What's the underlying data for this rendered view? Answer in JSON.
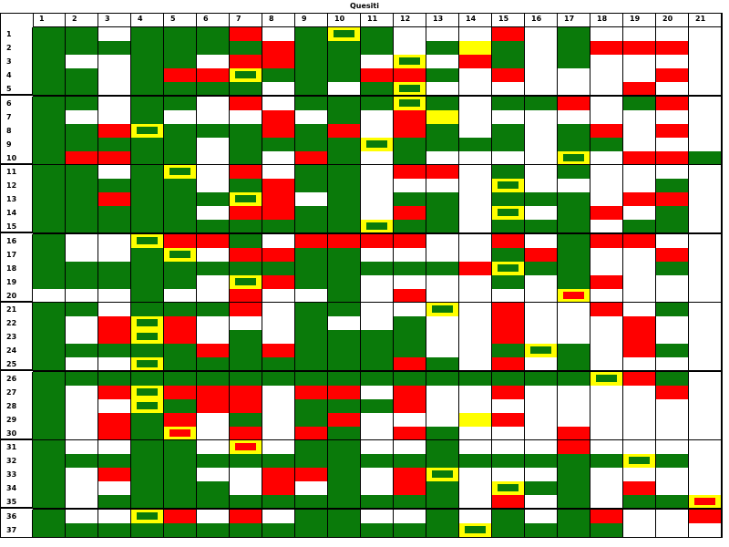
{
  "title": "Quesiti",
  "colors": {
    "G": "#0a7a0a",
    "R": "#ff0000",
    "W": "#ffffff",
    "Y": "#ffff00",
    "gridline": "#000000"
  },
  "columns": [
    "1",
    "2",
    "3",
    "4",
    "5",
    "6",
    "7",
    "8",
    "9",
    "10",
    "11",
    "12",
    "13",
    "14",
    "15",
    "16",
    "17",
    "18",
    "19",
    "20",
    "21"
  ],
  "group_breaks_after_rows": [
    5,
    10,
    15,
    20,
    25,
    30,
    35
  ],
  "rows": [
    {
      "label": "1",
      "cells": [
        "G",
        "G",
        "W",
        "G",
        "G",
        "G",
        "R",
        "W",
        "G",
        "YG",
        "G",
        "W",
        "W",
        "W",
        "R",
        "W",
        "G",
        "W",
        "W",
        "W",
        "W"
      ]
    },
    {
      "label": "2",
      "cells": [
        "G",
        "G",
        "G",
        "G",
        "G",
        "G",
        "G",
        "R",
        "G",
        "G",
        "G",
        "W",
        "G",
        "Y",
        "G",
        "W",
        "G",
        "R",
        "R",
        "R",
        "W"
      ]
    },
    {
      "label": "3",
      "cells": [
        "G",
        "W",
        "W",
        "G",
        "G",
        "W",
        "R",
        "R",
        "G",
        "G",
        "W",
        "YG",
        "W",
        "R",
        "G",
        "W",
        "G",
        "W",
        "W",
        "W",
        "W"
      ]
    },
    {
      "label": "4",
      "cells": [
        "G",
        "G",
        "W",
        "G",
        "R",
        "R",
        "YG",
        "G",
        "G",
        "G",
        "R",
        "R",
        "G",
        "W",
        "R",
        "W",
        "W",
        "W",
        "W",
        "R",
        "W"
      ]
    },
    {
      "label": "5",
      "cells": [
        "G",
        "G",
        "W",
        "G",
        "G",
        "G",
        "G",
        "W",
        "G",
        "W",
        "G",
        "YG",
        "W",
        "W",
        "W",
        "W",
        "W",
        "W",
        "R",
        "W",
        "W"
      ]
    },
    {
      "label": "6",
      "cells": [
        "G",
        "G",
        "W",
        "G",
        "G",
        "W",
        "R",
        "W",
        "G",
        "G",
        "G",
        "YG",
        "G",
        "W",
        "G",
        "G",
        "R",
        "W",
        "G",
        "R",
        "W"
      ]
    },
    {
      "label": "7",
      "cells": [
        "G",
        "W",
        "W",
        "G",
        "W",
        "W",
        "W",
        "R",
        "W",
        "G",
        "W",
        "R",
        "Y",
        "W",
        "W",
        "W",
        "W",
        "W",
        "W",
        "W",
        "W"
      ]
    },
    {
      "label": "8",
      "cells": [
        "G",
        "G",
        "R",
        "YG",
        "G",
        "G",
        "G",
        "R",
        "G",
        "R",
        "W",
        "R",
        "G",
        "W",
        "G",
        "W",
        "G",
        "R",
        "W",
        "R",
        "W"
      ]
    },
    {
      "label": "9",
      "cells": [
        "G",
        "G",
        "G",
        "G",
        "G",
        "W",
        "G",
        "G",
        "G",
        "G",
        "YG",
        "G",
        "G",
        "G",
        "G",
        "W",
        "G",
        "G",
        "W",
        "W",
        "W"
      ]
    },
    {
      "label": "10",
      "cells": [
        "G",
        "R",
        "R",
        "G",
        "G",
        "W",
        "G",
        "W",
        "R",
        "G",
        "W",
        "G",
        "W",
        "W",
        "W",
        "W",
        "YG",
        "W",
        "R",
        "R",
        "G"
      ]
    },
    {
      "label": "11",
      "cells": [
        "G",
        "G",
        "W",
        "G",
        "YG",
        "W",
        "R",
        "W",
        "G",
        "G",
        "W",
        "R",
        "R",
        "W",
        "G",
        "W",
        "G",
        "W",
        "W",
        "W",
        "W"
      ]
    },
    {
      "label": "12",
      "cells": [
        "G",
        "G",
        "G",
        "G",
        "G",
        "W",
        "G",
        "R",
        "G",
        "G",
        "W",
        "W",
        "W",
        "W",
        "YG",
        "W",
        "W",
        "W",
        "W",
        "G",
        "W"
      ]
    },
    {
      "label": "13",
      "cells": [
        "G",
        "G",
        "R",
        "G",
        "G",
        "G",
        "YG",
        "R",
        "W",
        "G",
        "W",
        "G",
        "G",
        "W",
        "G",
        "G",
        "G",
        "W",
        "R",
        "R",
        "W"
      ]
    },
    {
      "label": "14",
      "cells": [
        "G",
        "G",
        "G",
        "G",
        "G",
        "W",
        "R",
        "R",
        "G",
        "G",
        "W",
        "R",
        "G",
        "W",
        "YG",
        "W",
        "G",
        "R",
        "W",
        "G",
        "W"
      ]
    },
    {
      "label": "15",
      "cells": [
        "G",
        "G",
        "G",
        "G",
        "G",
        "G",
        "G",
        "G",
        "G",
        "G",
        "YG",
        "G",
        "G",
        "W",
        "G",
        "G",
        "G",
        "W",
        "G",
        "G",
        "W"
      ]
    },
    {
      "label": "16",
      "cells": [
        "G",
        "W",
        "W",
        "YG",
        "R",
        "R",
        "G",
        "W",
        "R",
        "R",
        "R",
        "R",
        "W",
        "W",
        "R",
        "W",
        "G",
        "R",
        "R",
        "W",
        "W"
      ]
    },
    {
      "label": "17",
      "cells": [
        "G",
        "W",
        "W",
        "G",
        "YG",
        "W",
        "R",
        "R",
        "G",
        "G",
        "W",
        "W",
        "W",
        "W",
        "G",
        "R",
        "G",
        "W",
        "W",
        "R",
        "W"
      ]
    },
    {
      "label": "18",
      "cells": [
        "G",
        "G",
        "G",
        "G",
        "G",
        "G",
        "G",
        "G",
        "G",
        "G",
        "G",
        "G",
        "G",
        "R",
        "YG",
        "G",
        "G",
        "W",
        "W",
        "G",
        "W"
      ]
    },
    {
      "label": "19",
      "cells": [
        "G",
        "G",
        "G",
        "G",
        "G",
        "W",
        "YG",
        "R",
        "G",
        "G",
        "W",
        "W",
        "W",
        "W",
        "G",
        "W",
        "G",
        "R",
        "W",
        "W",
        "W"
      ]
    },
    {
      "label": "20",
      "cells": [
        "W",
        "W",
        "W",
        "G",
        "W",
        "W",
        "R",
        "W",
        "W",
        "G",
        "W",
        "R",
        "W",
        "W",
        "W",
        "W",
        "YR",
        "W",
        "W",
        "W",
        "W"
      ]
    },
    {
      "label": "21",
      "cells": [
        "G",
        "G",
        "W",
        "G",
        "G",
        "G",
        "R",
        "W",
        "G",
        "G",
        "W",
        "W",
        "YG",
        "W",
        "R",
        "W",
        "W",
        "R",
        "W",
        "G",
        "W"
      ]
    },
    {
      "label": "22",
      "cells": [
        "G",
        "W",
        "R",
        "YG",
        "R",
        "W",
        "W",
        "W",
        "G",
        "W",
        "W",
        "G",
        "W",
        "W",
        "R",
        "W",
        "W",
        "W",
        "R",
        "W",
        "W"
      ]
    },
    {
      "label": "23",
      "cells": [
        "G",
        "W",
        "R",
        "YG",
        "R",
        "W",
        "G",
        "W",
        "G",
        "G",
        "G",
        "G",
        "W",
        "W",
        "R",
        "W",
        "W",
        "W",
        "R",
        "W",
        "W"
      ]
    },
    {
      "label": "24",
      "cells": [
        "G",
        "G",
        "G",
        "G",
        "G",
        "R",
        "G",
        "R",
        "G",
        "G",
        "G",
        "G",
        "W",
        "W",
        "G",
        "YG",
        "G",
        "W",
        "R",
        "G",
        "W"
      ]
    },
    {
      "label": "25",
      "cells": [
        "G",
        "W",
        "W",
        "YG",
        "G",
        "G",
        "G",
        "G",
        "G",
        "G",
        "G",
        "R",
        "G",
        "W",
        "R",
        "W",
        "G",
        "W",
        "W",
        "W",
        "W"
      ]
    },
    {
      "label": "26",
      "cells": [
        "G",
        "G",
        "G",
        "G",
        "G",
        "G",
        "G",
        "G",
        "G",
        "G",
        "G",
        "G",
        "G",
        "G",
        "G",
        "G",
        "G",
        "YG",
        "R",
        "G",
        "W"
      ]
    },
    {
      "label": "27",
      "cells": [
        "G",
        "W",
        "R",
        "YG",
        "R",
        "R",
        "R",
        "W",
        "R",
        "R",
        "W",
        "R",
        "W",
        "W",
        "R",
        "W",
        "W",
        "W",
        "W",
        "R",
        "W"
      ]
    },
    {
      "label": "28",
      "cells": [
        "G",
        "W",
        "W",
        "YG",
        "G",
        "R",
        "R",
        "W",
        "G",
        "G",
        "G",
        "R",
        "W",
        "W",
        "W",
        "W",
        "W",
        "W",
        "W",
        "W",
        "W"
      ]
    },
    {
      "label": "29",
      "cells": [
        "G",
        "W",
        "R",
        "G",
        "R",
        "W",
        "G",
        "W",
        "G",
        "R",
        "W",
        "W",
        "W",
        "Y",
        "R",
        "W",
        "W",
        "W",
        "W",
        "W",
        "W"
      ]
    },
    {
      "label": "30",
      "cells": [
        "G",
        "W",
        "R",
        "G",
        "YR",
        "W",
        "R",
        "W",
        "R",
        "G",
        "W",
        "R",
        "G",
        "W",
        "W",
        "W",
        "R",
        "W",
        "W",
        "W",
        "W"
      ]
    },
    {
      "label": "31",
      "cells": [
        "G",
        "W",
        "W",
        "G",
        "G",
        "W",
        "YR",
        "W",
        "G",
        "G",
        "W",
        "W",
        "G",
        "W",
        "W",
        "W",
        "R",
        "W",
        "W",
        "W",
        "W"
      ]
    },
    {
      "label": "32",
      "cells": [
        "G",
        "G",
        "G",
        "G",
        "G",
        "G",
        "G",
        "G",
        "G",
        "G",
        "G",
        "G",
        "G",
        "G",
        "G",
        "G",
        "G",
        "G",
        "YG",
        "G",
        "W"
      ]
    },
    {
      "label": "33",
      "cells": [
        "G",
        "W",
        "R",
        "G",
        "G",
        "W",
        "W",
        "R",
        "R",
        "G",
        "W",
        "R",
        "YG",
        "W",
        "W",
        "W",
        "G",
        "W",
        "W",
        "W",
        "W"
      ]
    },
    {
      "label": "34",
      "cells": [
        "G",
        "W",
        "W",
        "G",
        "G",
        "G",
        "W",
        "R",
        "W",
        "G",
        "W",
        "R",
        "G",
        "W",
        "YG",
        "G",
        "G",
        "W",
        "R",
        "W",
        "W"
      ]
    },
    {
      "label": "35",
      "cells": [
        "G",
        "W",
        "G",
        "G",
        "G",
        "G",
        "G",
        "G",
        "G",
        "G",
        "G",
        "G",
        "G",
        "W",
        "R",
        "W",
        "G",
        "W",
        "G",
        "G",
        "YR"
      ]
    },
    {
      "label": "36",
      "cells": [
        "G",
        "W",
        "W",
        "YG",
        "R",
        "W",
        "R",
        "W",
        "G",
        "G",
        "W",
        "W",
        "G",
        "W",
        "G",
        "W",
        "G",
        "R",
        "W",
        "W",
        "R"
      ]
    },
    {
      "label": "37",
      "cells": [
        "G",
        "G",
        "G",
        "G",
        "G",
        "G",
        "G",
        "G",
        "G",
        "G",
        "G",
        "G",
        "G",
        "YG",
        "G",
        "G",
        "G",
        "G",
        "W",
        "W",
        "W"
      ]
    }
  ]
}
